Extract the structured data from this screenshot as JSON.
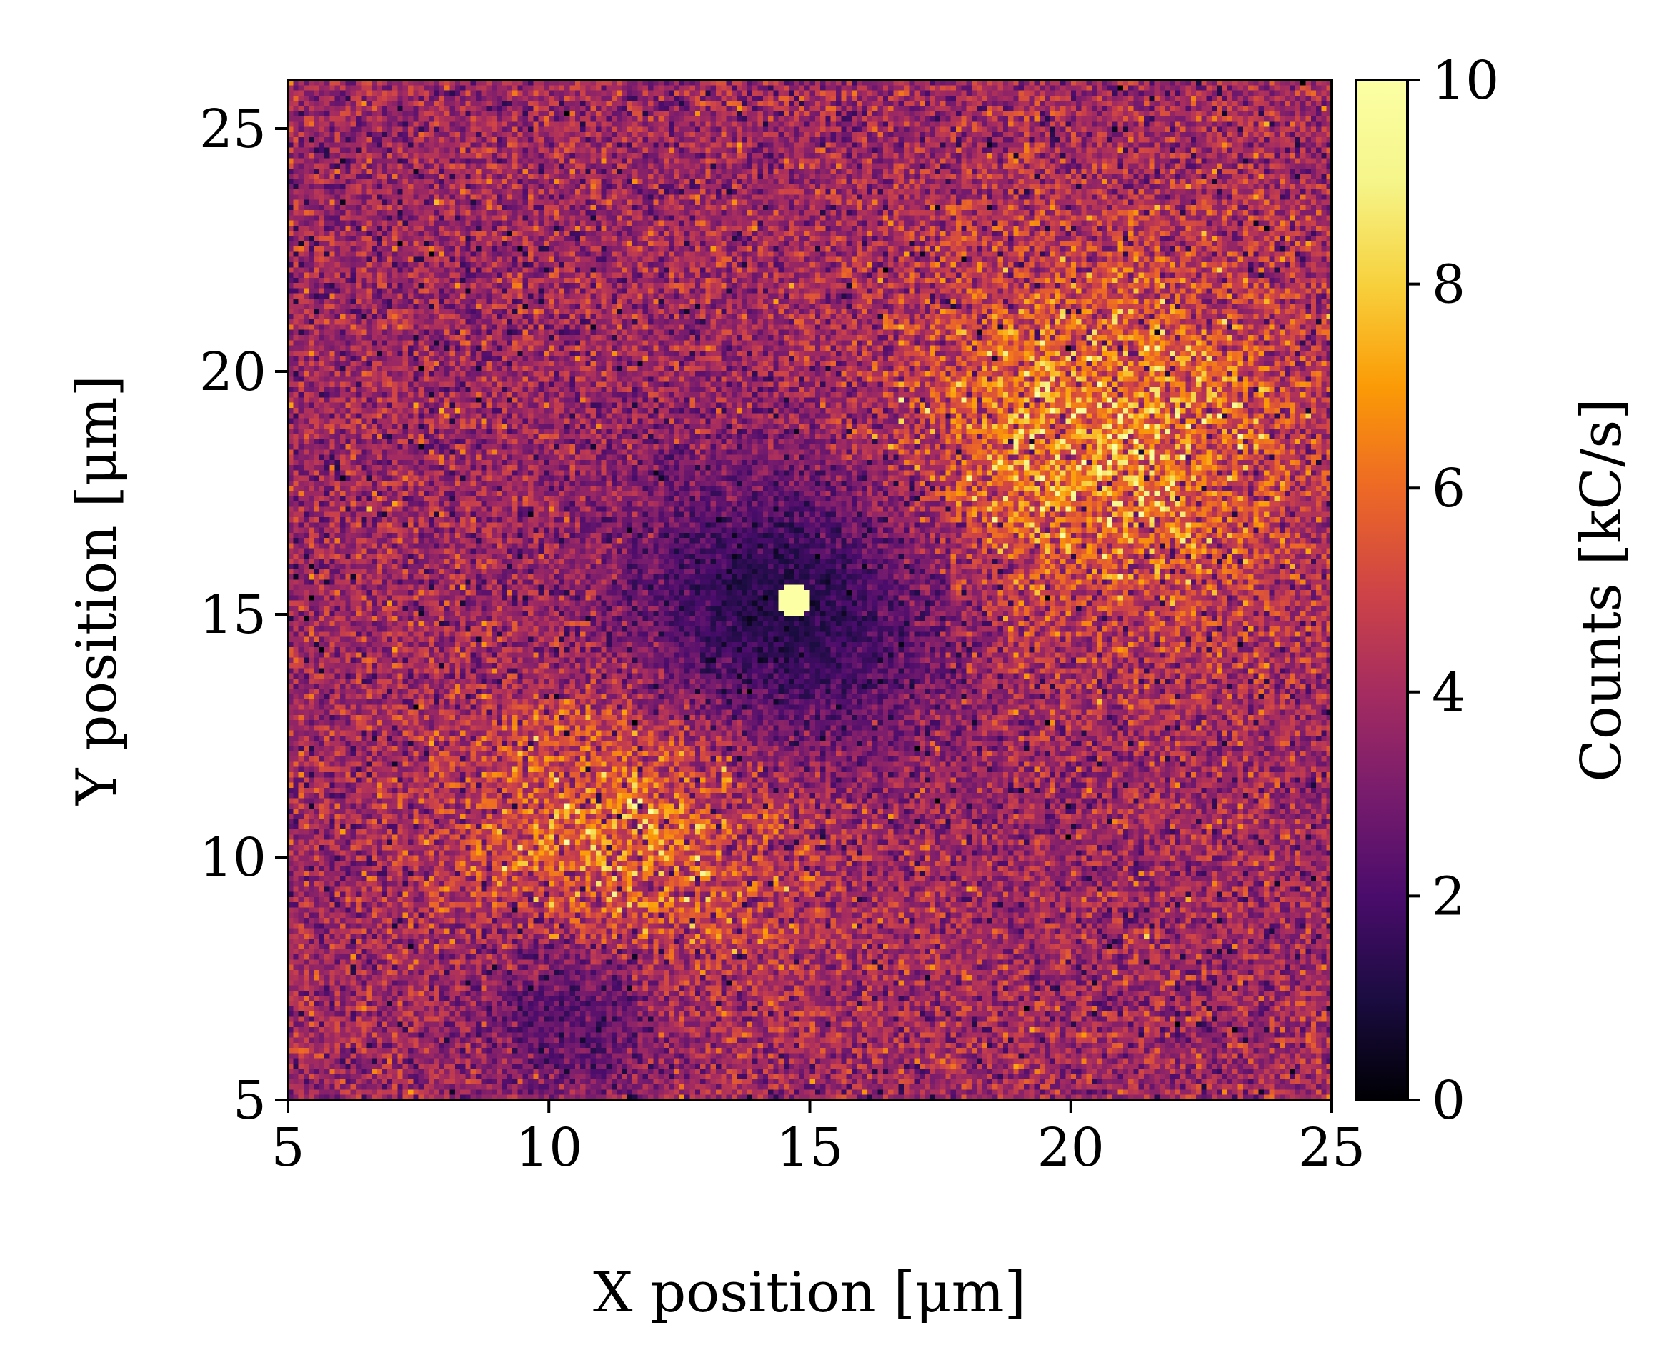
{
  "chart_data": {
    "type": "heatmap",
    "colormap": "inferno",
    "xlabel": "X position [μm]",
    "ylabel": "Y position [μm]",
    "xlim": [
      5,
      25
    ],
    "ylim": [
      5,
      26
    ],
    "xticks": [
      5,
      10,
      15,
      20,
      25
    ],
    "yticks": [
      5,
      10,
      15,
      20,
      25
    ],
    "grid": false,
    "colorbar": {
      "label": "Counts [kC/s]",
      "range": [
        0,
        10
      ],
      "ticks": [
        0,
        2,
        4,
        6,
        8,
        10
      ]
    },
    "features": [
      {
        "description": "bright spot",
        "x": 14.7,
        "y": 15.3,
        "value": 10
      },
      {
        "description": "dark region",
        "x": 14.5,
        "y": 15.0,
        "value": 1
      },
      {
        "description": "bright lobe",
        "x": 20.5,
        "y": 18.5,
        "value": 6.5
      },
      {
        "description": "bright lobe",
        "x": 11.5,
        "y": 10.5,
        "value": 6
      },
      {
        "description": "dark patch",
        "x": 10.5,
        "y": 7.0,
        "value": 1.8
      }
    ],
    "background_level": 3.8
  }
}
